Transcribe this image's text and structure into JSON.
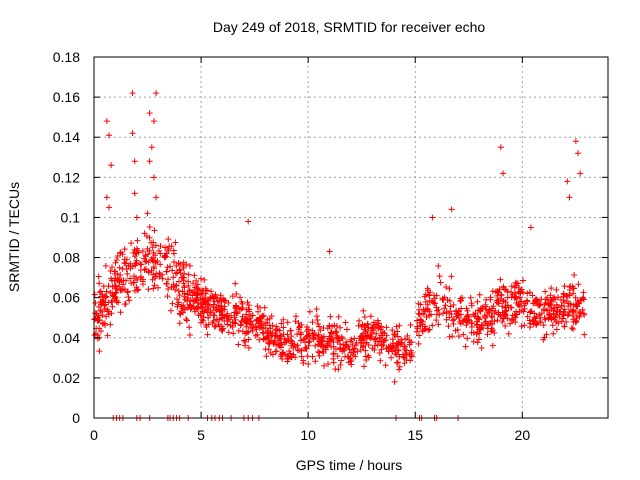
{
  "chart_data": {
    "type": "scatter",
    "title": "Day 249 of 2018, SRMTID for receiver echo",
    "xlabel": "GPS time / hours",
    "ylabel": "SRMTID / TECUs",
    "xlim": [
      0,
      24
    ],
    "ylim": [
      0,
      0.18
    ],
    "xticks": [
      0,
      5,
      10,
      15,
      20
    ],
    "xtick_labels": [
      "0",
      "5",
      "10",
      "15",
      "20"
    ],
    "yticks": [
      0,
      0.02,
      0.04,
      0.06,
      0.08,
      0.1,
      0.12,
      0.14,
      0.16,
      0.18
    ],
    "ytick_labels": [
      "0",
      "0.02",
      "0.04",
      "0.06",
      "0.08",
      "0.1",
      "0.12",
      "0.14",
      "0.16",
      "0.18"
    ],
    "grid": true,
    "marker": "+",
    "marker_color": "#ff0000",
    "trend": [
      [
        0.0,
        0.05
      ],
      [
        0.5,
        0.055
      ],
      [
        1.0,
        0.065
      ],
      [
        1.5,
        0.07
      ],
      [
        2.0,
        0.075
      ],
      [
        2.5,
        0.08
      ],
      [
        3.0,
        0.078
      ],
      [
        3.5,
        0.07
      ],
      [
        4.0,
        0.065
      ],
      [
        4.5,
        0.06
      ],
      [
        5.0,
        0.058
      ],
      [
        6.0,
        0.052
      ],
      [
        7.0,
        0.05
      ],
      [
        8.0,
        0.045
      ],
      [
        9.0,
        0.038
      ],
      [
        10.0,
        0.04
      ],
      [
        11.0,
        0.038
      ],
      [
        12.0,
        0.036
      ],
      [
        13.0,
        0.042
      ],
      [
        14.0,
        0.035
      ],
      [
        14.7,
        0.032
      ],
      [
        15.2,
        0.05
      ],
      [
        16.0,
        0.058
      ],
      [
        17.0,
        0.05
      ],
      [
        18.0,
        0.048
      ],
      [
        19.0,
        0.055
      ],
      [
        20.0,
        0.058
      ],
      [
        21.0,
        0.052
      ],
      [
        22.0,
        0.055
      ],
      [
        23.0,
        0.058
      ]
    ],
    "high_points": [
      [
        0.6,
        0.148
      ],
      [
        0.7,
        0.141
      ],
      [
        0.8,
        0.126
      ],
      [
        0.6,
        0.11
      ],
      [
        0.7,
        0.105
      ],
      [
        1.8,
        0.162
      ],
      [
        1.8,
        0.142
      ],
      [
        1.9,
        0.128
      ],
      [
        1.9,
        0.112
      ],
      [
        2.0,
        0.1
      ],
      [
        2.6,
        0.152
      ],
      [
        2.9,
        0.162
      ],
      [
        2.8,
        0.148
      ],
      [
        2.7,
        0.135
      ],
      [
        2.6,
        0.128
      ],
      [
        2.8,
        0.12
      ],
      [
        2.9,
        0.11
      ],
      [
        2.5,
        0.102
      ],
      [
        19.0,
        0.135
      ],
      [
        19.1,
        0.122
      ],
      [
        22.5,
        0.138
      ],
      [
        22.6,
        0.132
      ],
      [
        22.7,
        0.122
      ],
      [
        22.1,
        0.118
      ],
      [
        22.2,
        0.11
      ],
      [
        7.2,
        0.098
      ],
      [
        11.0,
        0.083
      ],
      [
        16.7,
        0.104
      ],
      [
        15.8,
        0.1
      ],
      [
        20.4,
        0.095
      ]
    ],
    "zero_points": [
      0.9,
      1.05,
      1.2,
      1.35,
      2.0,
      2.15,
      2.6,
      3.45,
      3.55,
      3.7,
      3.85,
      4.0,
      4.4,
      5.3,
      5.5,
      5.65,
      5.85,
      6.0,
      6.4,
      7.0,
      7.2,
      7.4,
      7.7,
      14.1,
      15.2,
      15.3,
      15.9,
      16.0,
      17.0
    ],
    "seed": 249
  }
}
